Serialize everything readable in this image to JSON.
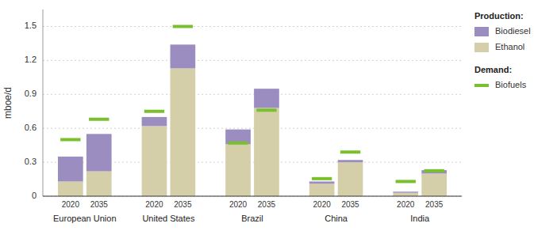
{
  "chart_data": {
    "type": "bar",
    "stacked": true,
    "grid": true,
    "legend": "right",
    "ylabel": "mboe/d",
    "categories": [
      "European Union",
      "United States",
      "Brazil",
      "China",
      "India"
    ],
    "subcategories": [
      "2020",
      "2035"
    ],
    "ylim": [
      0,
      1.65
    ],
    "yticks": [
      0,
      0.3,
      0.6,
      0.9,
      1.2,
      1.5
    ],
    "series": [
      {
        "name": "Ethanol",
        "type": "bar",
        "color": "#d4cfa8",
        "values": [
          [
            0.13,
            0.22
          ],
          [
            0.62,
            1.13
          ],
          [
            0.46,
            0.78
          ],
          [
            0.11,
            0.3
          ],
          [
            0.03,
            0.2
          ]
        ]
      },
      {
        "name": "Biodiesel",
        "type": "bar",
        "color": "#9b8dc0",
        "values": [
          [
            0.22,
            0.33
          ],
          [
            0.08,
            0.21
          ],
          [
            0.13,
            0.17
          ],
          [
            0.02,
            0.02
          ],
          [
            0.01,
            0.03
          ]
        ]
      },
      {
        "name": "Biofuels",
        "type": "marker",
        "color": "#7abf2e",
        "values": [
          [
            0.5,
            0.68
          ],
          [
            0.75,
            1.5
          ],
          [
            0.47,
            0.76
          ],
          [
            0.155,
            0.39
          ],
          [
            0.13,
            0.225
          ]
        ]
      }
    ],
    "legend_groups": [
      {
        "title": "Production:",
        "series": [
          1,
          0
        ]
      },
      {
        "title": "Demand:",
        "series": [
          2
        ]
      }
    ]
  }
}
